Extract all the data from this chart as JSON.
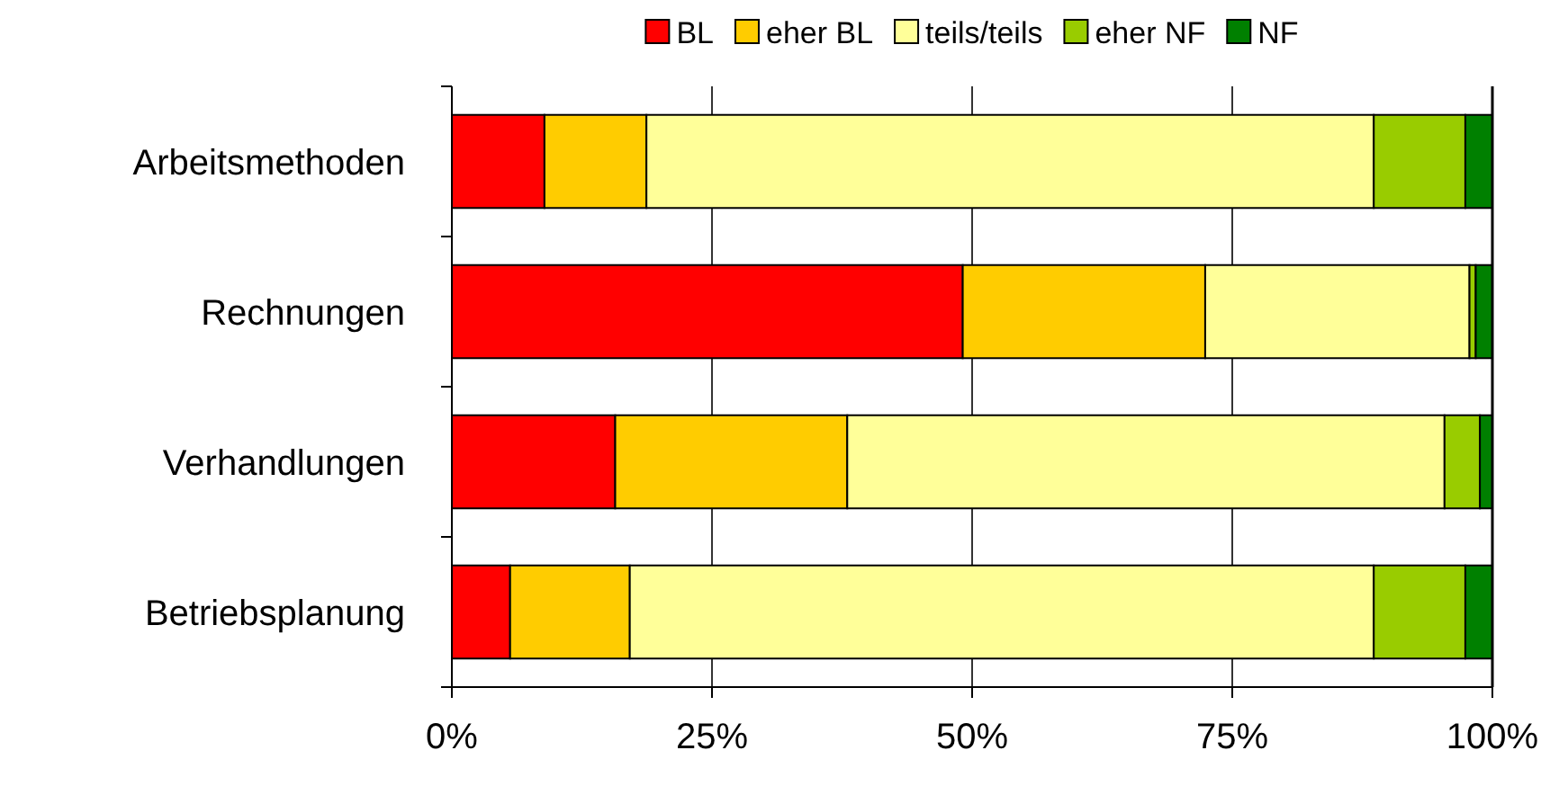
{
  "chart_data": {
    "type": "bar",
    "orientation": "horizontal",
    "stacked": true,
    "categories": [
      "Arbeitsmethoden",
      "Rechnungen",
      "Verhandlungen",
      "Betriebsplanung"
    ],
    "series": [
      {
        "name": "BL",
        "color": "#ff0000",
        "values": [
          8.9,
          49.1,
          15.7,
          5.6
        ]
      },
      {
        "name": "eher BL",
        "color": "#ffcc00",
        "values": [
          9.8,
          23.3,
          22.3,
          11.5
        ]
      },
      {
        "name": "teils/teils",
        "color": "#ffff99",
        "values": [
          69.9,
          25.4,
          57.4,
          71.5
        ]
      },
      {
        "name": "eher NF",
        "color": "#99cc00",
        "values": [
          8.8,
          0.6,
          3.4,
          8.8
        ]
      },
      {
        "name": "NF",
        "color": "#008000",
        "values": [
          2.6,
          1.6,
          1.2,
          2.6
        ]
      }
    ],
    "xlim": [
      0,
      100
    ],
    "xticks": [
      {
        "value": 0,
        "label": "0%"
      },
      {
        "value": 25,
        "label": "25%"
      },
      {
        "value": 50,
        "label": "50%"
      },
      {
        "value": 75,
        "label": "75%"
      },
      {
        "value": 100,
        "label": "100%"
      }
    ],
    "grid": "x",
    "legend": "top"
  }
}
